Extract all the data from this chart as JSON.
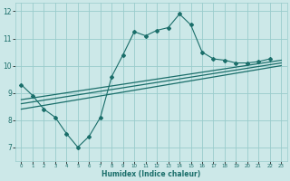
{
  "xlabel": "Humidex (Indice chaleur)",
  "x_ticks": [
    0,
    1,
    2,
    3,
    4,
    5,
    6,
    7,
    8,
    9,
    10,
    11,
    12,
    13,
    14,
    15,
    16,
    17,
    18,
    19,
    20,
    21,
    22,
    23
  ],
  "ylim": [
    6.5,
    12.3
  ],
  "xlim": [
    -0.5,
    23.5
  ],
  "yticks": [
    7,
    8,
    9,
    10,
    11,
    12
  ],
  "bg_color": "#cce8e8",
  "line_color": "#1a6e6a",
  "grid_color": "#99cccc",
  "curve_x": [
    0,
    1,
    2,
    3,
    4,
    5,
    6,
    7,
    8,
    9,
    10,
    11,
    12,
    13,
    14,
    15,
    16,
    17,
    18,
    19,
    20,
    21,
    22
  ],
  "curve_y": [
    9.3,
    8.9,
    8.4,
    8.1,
    7.5,
    7.0,
    7.4,
    8.1,
    9.6,
    10.4,
    11.25,
    11.1,
    11.3,
    11.4,
    11.9,
    11.5,
    10.5,
    10.25,
    10.2,
    10.1,
    10.1,
    10.15,
    10.25
  ],
  "line1_x": [
    0,
    23
  ],
  "line1_y": [
    8.4,
    10.0
  ],
  "line2_x": [
    0,
    23
  ],
  "line2_y": [
    8.6,
    10.1
  ],
  "line3_x": [
    0,
    23
  ],
  "line3_y": [
    8.75,
    10.2
  ]
}
